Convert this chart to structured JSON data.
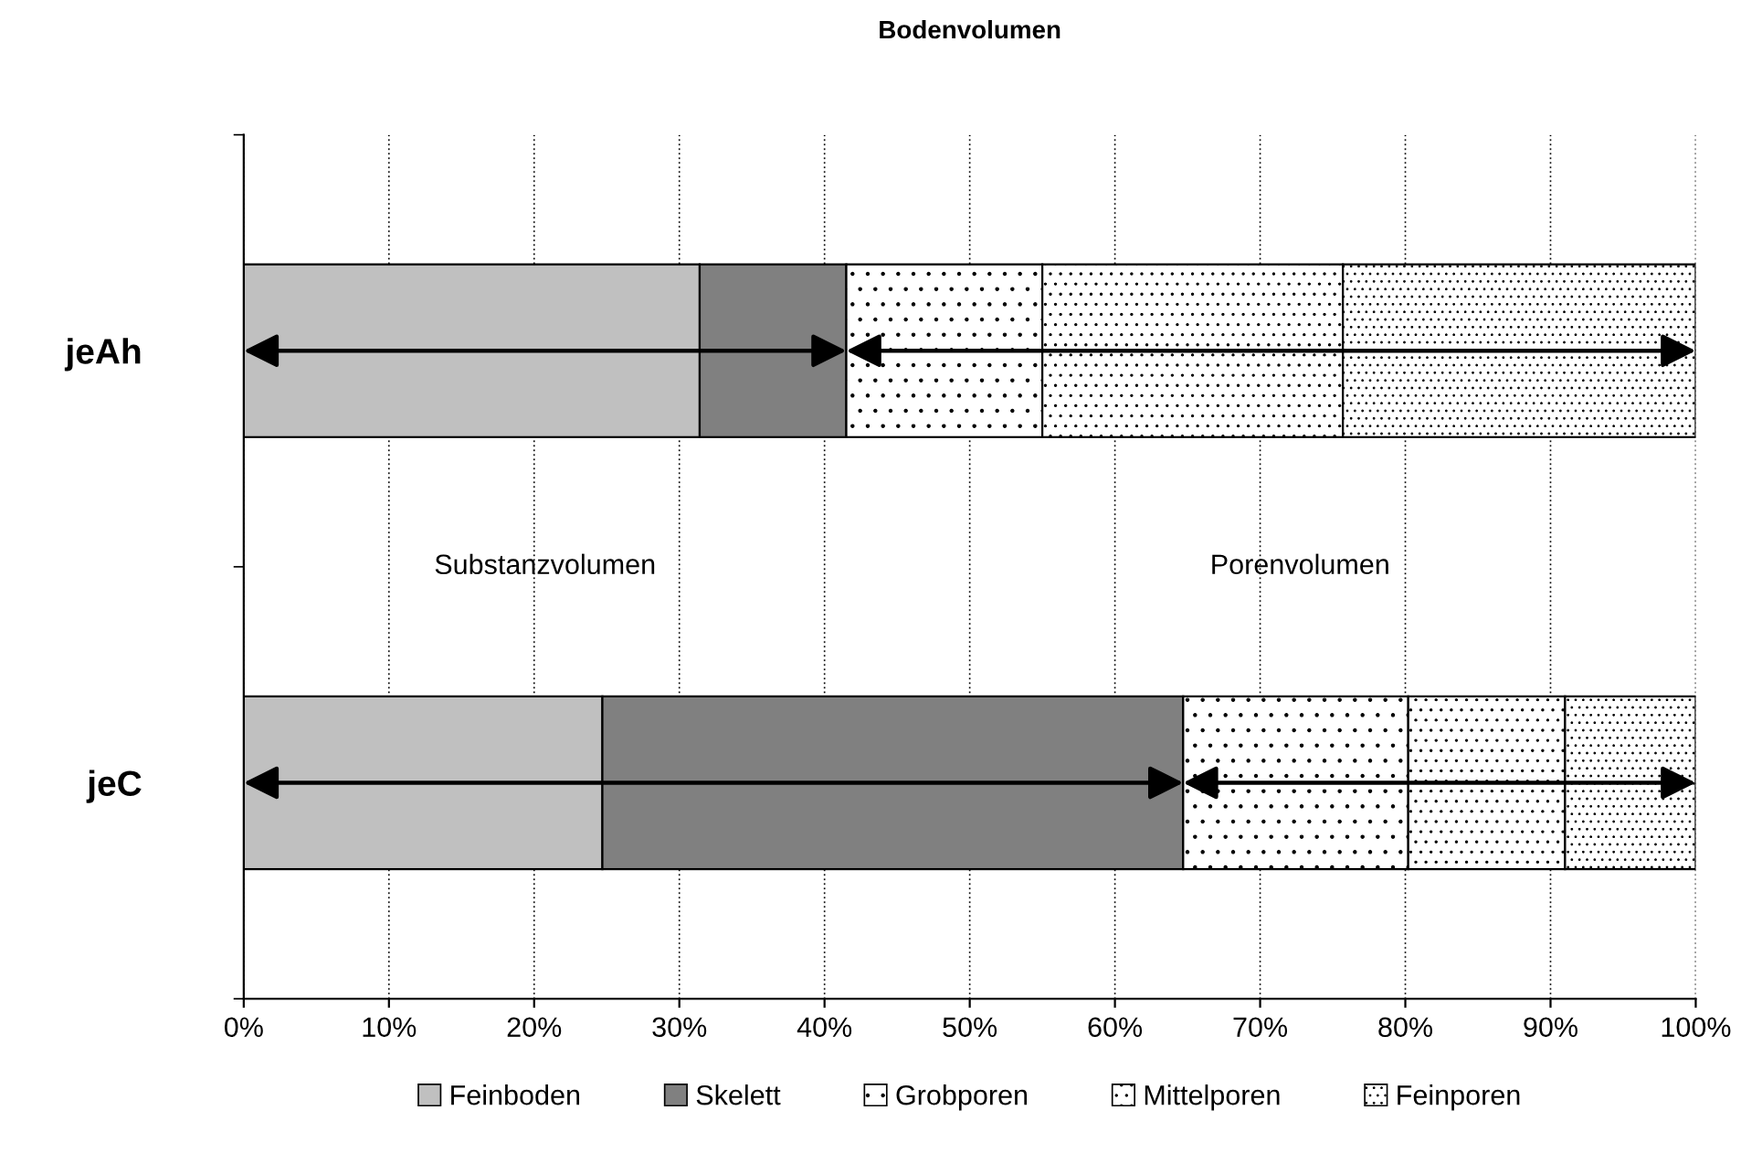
{
  "chart_data": {
    "type": "bar",
    "orientation": "horizontal",
    "stacked": true,
    "title": "Bodenvolumen",
    "categories": [
      "jeAh",
      "jeC"
    ],
    "series": [
      {
        "name": "Feinboden",
        "color": "#c0c0c0",
        "values": [
          31.4,
          24.7
        ]
      },
      {
        "name": "Skelett",
        "color": "#808080",
        "values": [
          10.1,
          40.0
        ]
      },
      {
        "name": "Grobporen",
        "color": "#ffffff",
        "values": [
          13.5,
          15.5
        ]
      },
      {
        "name": "Mittelporen",
        "color": "#ffffff",
        "values": [
          20.7,
          10.8
        ]
      },
      {
        "name": "Feinporen",
        "color": "#ffffff",
        "values": [
          24.3,
          9.0
        ]
      }
    ],
    "xlim": [
      0,
      100
    ],
    "xticks": [
      {
        "value": 0,
        "label": "0%"
      },
      {
        "value": 10,
        "label": "10%"
      },
      {
        "value": 20,
        "label": "20%"
      },
      {
        "value": 30,
        "label": "30%"
      },
      {
        "value": 40,
        "label": "40%"
      },
      {
        "value": 50,
        "label": "50%"
      },
      {
        "value": 60,
        "label": "60%"
      },
      {
        "value": 70,
        "label": "70%"
      },
      {
        "value": 80,
        "label": "80%"
      },
      {
        "value": 90,
        "label": "90%"
      },
      {
        "value": 100,
        "label": "100%"
      }
    ],
    "annotations": [
      "Substanzvolumen",
      "Porenvolumen"
    ],
    "grid": "x",
    "legend": "bottom"
  }
}
